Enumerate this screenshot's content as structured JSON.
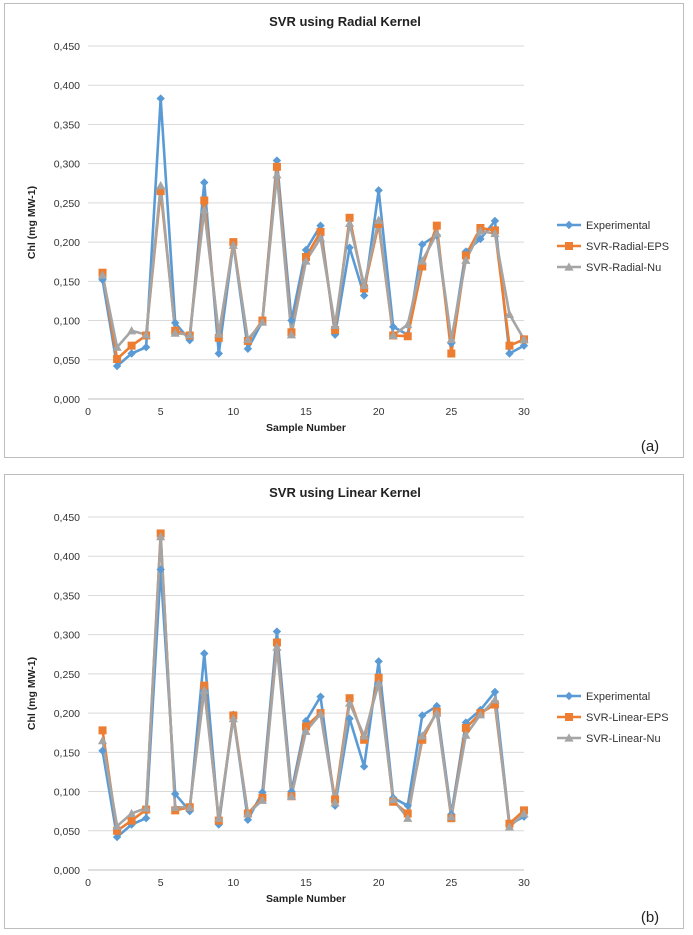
{
  "chart_data": [
    {
      "type": "line",
      "title": "SVR using Radial Kernel",
      "xlabel": "Sample Number",
      "ylabel": "Chl (mg MW-1)",
      "panel_label": "(a)",
      "xlim": [
        0,
        30
      ],
      "ylim": [
        0,
        0.45
      ],
      "x_ticks": [
        "0",
        "5",
        "10",
        "15",
        "20",
        "25",
        "30"
      ],
      "y_ticks": [
        "0,000",
        "0,050",
        "0,100",
        "0,150",
        "0,200",
        "0,250",
        "0,300",
        "0,350",
        "0,400",
        "0,450"
      ],
      "grid": "horizontal",
      "legend_position": "right",
      "x": [
        1,
        2,
        3,
        4,
        5,
        6,
        7,
        8,
        9,
        10,
        11,
        12,
        13,
        14,
        15,
        16,
        17,
        18,
        19,
        20,
        21,
        22,
        23,
        24,
        25,
        26,
        27,
        28,
        29,
        30
      ],
      "series": [
        {
          "name": "Experimental",
          "color": "#5b9bd5",
          "marker": "diamond",
          "values": [
            0.152,
            0.042,
            0.058,
            0.066,
            0.383,
            0.097,
            0.075,
            0.276,
            0.058,
            0.198,
            0.064,
            0.099,
            0.304,
            0.1,
            0.19,
            0.221,
            0.082,
            0.193,
            0.132,
            0.266,
            0.092,
            0.082,
            0.197,
            0.209,
            0.071,
            0.188,
            0.204,
            0.227,
            0.058,
            0.068
          ]
        },
        {
          "name": "SVR-Radial-EPS",
          "color": "#ed7d31",
          "marker": "square",
          "values": [
            0.161,
            0.051,
            0.068,
            0.081,
            0.265,
            0.087,
            0.081,
            0.253,
            0.078,
            0.2,
            0.074,
            0.1,
            0.296,
            0.085,
            0.181,
            0.213,
            0.088,
            0.231,
            0.141,
            0.223,
            0.081,
            0.08,
            0.169,
            0.221,
            0.058,
            0.183,
            0.218,
            0.215,
            0.068,
            0.076
          ]
        },
        {
          "name": "SVR-Radial-Nu",
          "color": "#a5a5a5",
          "marker": "triangle",
          "values": [
            0.158,
            0.066,
            0.087,
            0.082,
            0.272,
            0.084,
            0.082,
            0.241,
            0.083,
            0.196,
            0.076,
            0.098,
            0.286,
            0.082,
            0.176,
            0.205,
            0.094,
            0.224,
            0.145,
            0.228,
            0.081,
            0.095,
            0.176,
            0.211,
            0.076,
            0.177,
            0.214,
            0.211,
            0.108,
            0.076
          ]
        }
      ]
    },
    {
      "type": "line",
      "title": "SVR using Linear Kernel",
      "xlabel": "Sample Number",
      "ylabel": "Chl (mg MW-1)",
      "panel_label": "(b)",
      "xlim": [
        0,
        30
      ],
      "ylim": [
        0,
        0.45
      ],
      "x_ticks": [
        "0",
        "5",
        "10",
        "15",
        "20",
        "25",
        "30"
      ],
      "y_ticks": [
        "0,000",
        "0,050",
        "0,100",
        "0,150",
        "0,200",
        "0,250",
        "0,300",
        "0,350",
        "0,400",
        "0,450"
      ],
      "grid": "horizontal",
      "legend_position": "right",
      "x": [
        1,
        2,
        3,
        4,
        5,
        6,
        7,
        8,
        9,
        10,
        11,
        12,
        13,
        14,
        15,
        16,
        17,
        18,
        19,
        20,
        21,
        22,
        23,
        24,
        25,
        26,
        27,
        28,
        29,
        30
      ],
      "series": [
        {
          "name": "Experimental",
          "color": "#5b9bd5",
          "marker": "diamond",
          "values": [
            0.152,
            0.042,
            0.058,
            0.066,
            0.383,
            0.097,
            0.075,
            0.276,
            0.058,
            0.198,
            0.064,
            0.099,
            0.304,
            0.1,
            0.19,
            0.221,
            0.082,
            0.193,
            0.132,
            0.266,
            0.092,
            0.082,
            0.197,
            0.209,
            0.071,
            0.188,
            0.204,
            0.227,
            0.058,
            0.068
          ]
        },
        {
          "name": "SVR-Linear-EPS",
          "color": "#ed7d31",
          "marker": "square",
          "values": [
            0.178,
            0.05,
            0.063,
            0.077,
            0.429,
            0.076,
            0.08,
            0.235,
            0.063,
            0.197,
            0.072,
            0.092,
            0.29,
            0.094,
            0.183,
            0.2,
            0.09,
            0.219,
            0.166,
            0.245,
            0.087,
            0.072,
            0.166,
            0.202,
            0.066,
            0.181,
            0.2,
            0.211,
            0.059,
            0.076
          ]
        },
        {
          "name": "SVR-Linear-Nu",
          "color": "#a5a5a5",
          "marker": "triangle",
          "values": [
            0.165,
            0.056,
            0.072,
            0.079,
            0.425,
            0.08,
            0.08,
            0.229,
            0.066,
            0.193,
            0.072,
            0.089,
            0.284,
            0.094,
            0.177,
            0.199,
            0.086,
            0.213,
            0.171,
            0.238,
            0.09,
            0.066,
            0.171,
            0.2,
            0.068,
            0.172,
            0.198,
            0.217,
            0.055,
            0.072
          ]
        }
      ]
    }
  ]
}
